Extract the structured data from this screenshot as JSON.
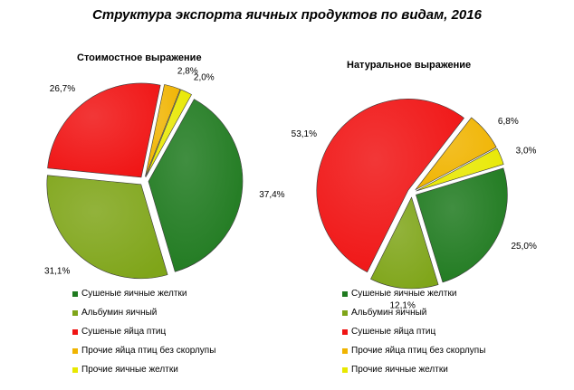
{
  "title": "Структура экспорта яичных продуктов по видам, 2016",
  "colors": {
    "dark-green": "#1f7a1f",
    "olive-green": "#7fa519",
    "red": "#f01414",
    "orange": "#f0b400",
    "yellow": "#e8e800"
  },
  "chart_data": [
    {
      "type": "pie",
      "title": "Стоимостное выражение",
      "categories": [
        "Сушеные яичные желтки",
        "Альбумин яичный",
        "Сушеные яйца птиц",
        "Прочие яйца птиц без скорлупы",
        "Прочие яичные желтки"
      ],
      "values": [
        37.4,
        31.1,
        26.7,
        2.8,
        2.0
      ],
      "labels": [
        "37,4%",
        "31,1%",
        "26,7%",
        "2,8%",
        "2,0%"
      ],
      "legend": "bottom"
    },
    {
      "type": "pie",
      "title": "Натуральное выражение",
      "categories": [
        "Сушеные яичные желтки",
        "Альбумин яичный",
        "Сушеные яйца птиц",
        "Прочие яйца птиц без скорлупы",
        "Прочие яичные желтки"
      ],
      "values": [
        25.0,
        12.1,
        53.1,
        6.8,
        3.0
      ],
      "labels": [
        "25,0%",
        "12,1%",
        "53,1%",
        "6,8%",
        "3,0%"
      ],
      "legend": "bottom"
    }
  ]
}
